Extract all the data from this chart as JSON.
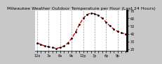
{
  "title": "Milwaukee Weather Outdoor Temperature per Hour (Last 24 Hours)",
  "hours": [
    0,
    1,
    2,
    3,
    4,
    5,
    6,
    7,
    8,
    9,
    10,
    11,
    12,
    13,
    14,
    15,
    16,
    17,
    18,
    19,
    20,
    21,
    22,
    23
  ],
  "temps": [
    28,
    26,
    24,
    23,
    22,
    21,
    22,
    24,
    28,
    34,
    42,
    52,
    60,
    65,
    67,
    66,
    64,
    60,
    55,
    50,
    46,
    43,
    41,
    40
  ],
  "line_color": "#cc0000",
  "marker_color": "#000000",
  "bg_color": "#c8c8c8",
  "plot_bg": "#ffffff",
  "ylim": [
    18,
    70
  ],
  "grid_color": "#888888",
  "title_fontsize": 4.5,
  "tick_fontsize": 3.5,
  "line_width": 1.0
}
